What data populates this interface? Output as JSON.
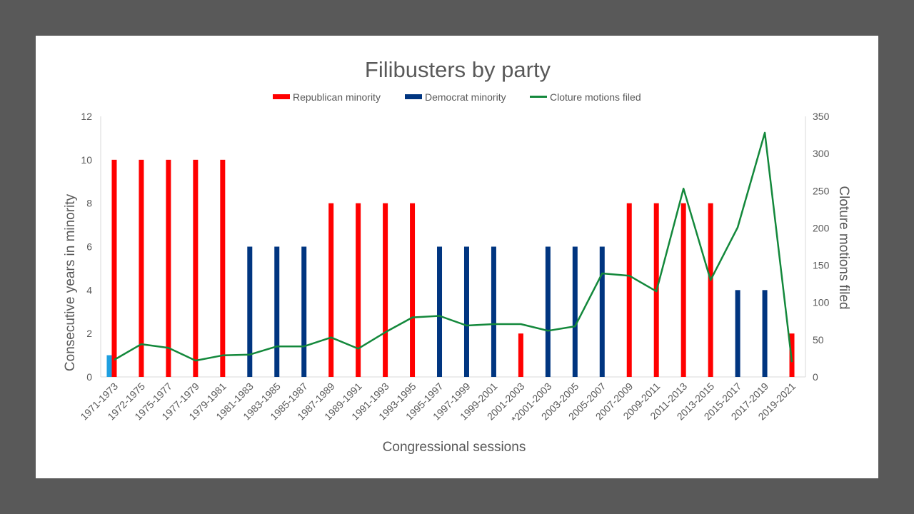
{
  "chart_data": {
    "type": "bar",
    "title": "Filibusters by party",
    "xlabel": "Congressional sessions",
    "ylabel": "Consecutive years in minority",
    "y2label": "Cloture motions filed",
    "ylim": [
      0,
      12
    ],
    "y2lim": [
      0,
      350
    ],
    "yticks": [
      "0",
      "2",
      "4",
      "6",
      "8",
      "10",
      "12"
    ],
    "y2ticks": [
      "0",
      "50",
      "100",
      "150",
      "200",
      "250",
      "300",
      "350"
    ],
    "legend_position": "top",
    "grid": false,
    "categories": [
      "1971-1973",
      "1972-1975",
      "1975-1977",
      "1977-1979",
      "1979-1981",
      "1981-1983",
      "1983-1985",
      "1985-1987",
      "1987-1989",
      "1989-1991",
      "1991-1993",
      "1993-1995",
      "1995-1997",
      "1997-1999",
      "1999-2001",
      "2001-2003",
      "*2001-2003",
      "2003-2005",
      "2005-2007",
      "2007-2009",
      "2009-2011",
      "2011-2013",
      "2013-2015",
      "2015-2017",
      "2017-2019",
      "2019-2021"
    ],
    "series": [
      {
        "name": "Republican minority",
        "kind": "bar",
        "axis": "left",
        "color": "#FF0000",
        "values": [
          10,
          10,
          10,
          10,
          10,
          0,
          0,
          0,
          8,
          8,
          8,
          8,
          0,
          0,
          0,
          2,
          0,
          0,
          0,
          8,
          8,
          8,
          8,
          0,
          0,
          2
        ]
      },
      {
        "name": "Democrat minority",
        "kind": "bar",
        "axis": "left",
        "color": "#003580",
        "values": [
          0,
          0,
          0,
          0,
          0,
          6,
          6,
          6,
          0,
          0,
          0,
          0,
          6,
          6,
          6,
          0,
          6,
          6,
          6,
          0,
          0,
          0,
          0,
          4,
          4,
          0
        ]
      },
      {
        "name": "Cloture motions filed",
        "kind": "line",
        "axis": "right",
        "color": "#13883B",
        "values": [
          23,
          44,
          39,
          22,
          29,
          30,
          41,
          41,
          53,
          38,
          60,
          80,
          82,
          69,
          71,
          71,
          62,
          68,
          139,
          136,
          115,
          253,
          130,
          201,
          328,
          20
        ]
      }
    ],
    "extra_bars": [
      {
        "category": "1971-1973",
        "value": 1,
        "color": "#1E9FE0",
        "axis": "left"
      }
    ]
  }
}
